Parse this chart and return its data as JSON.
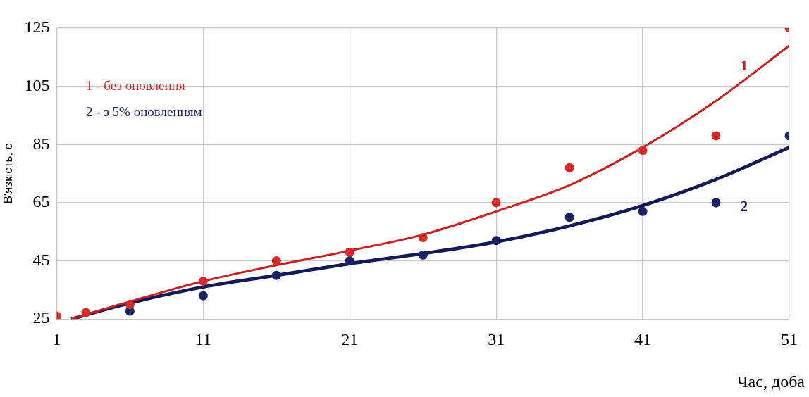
{
  "chart_data": {
    "type": "scatter",
    "xlabel": "Час, доба",
    "ylabel": "В'язкість, с",
    "xlim": [
      1,
      51
    ],
    "xticks": [
      1,
      11,
      21,
      31,
      41,
      51
    ],
    "ylim": [
      25,
      125
    ],
    "yticks": [
      25,
      45,
      65,
      85,
      105,
      125
    ],
    "grid": true,
    "legend": "top left",
    "marker": "circle",
    "series": [
      {
        "name": "1 - без оновлення",
        "color": "#d42a2a",
        "x": [
          1,
          3,
          6,
          11,
          16,
          21,
          26,
          31,
          36,
          41,
          46,
          51
        ],
        "values": [
          26,
          27.2,
          30,
          38,
          45,
          48,
          53,
          65,
          77,
          83,
          88,
          125
        ]
      },
      {
        "name": "2 - з 5% оновленням",
        "color": "#1a2366",
        "x": [
          6,
          11,
          16,
          21,
          26,
          31,
          36,
          41,
          46,
          51
        ],
        "values": [
          27.7,
          33,
          40,
          45,
          47,
          52,
          60,
          62,
          65,
          88
        ]
      },
      {
        "type": "line",
        "color": "#cc1f1f",
        "marker": "none",
        "x": [
          2,
          6,
          11,
          16,
          21,
          26,
          31,
          36,
          41,
          46,
          51
        ],
        "values": [
          25,
          31,
          38,
          43.5,
          48.5,
          54,
          62,
          71,
          84,
          100,
          119
        ]
      },
      {
        "type": "line",
        "color": "#141a55",
        "marker": "none",
        "x": [
          2,
          6,
          11,
          16,
          21,
          26,
          31,
          36,
          41,
          46,
          51
        ],
        "values": [
          25,
          30.5,
          36,
          40,
          44,
          47.5,
          51.5,
          57,
          64,
          73,
          84
        ]
      }
    ],
    "annotations": [
      "1",
      "2"
    ]
  }
}
